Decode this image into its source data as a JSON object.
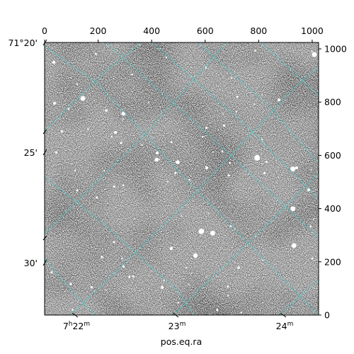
{
  "figure": {
    "xlabel": "pos.eq.ra",
    "pixel_x_ticks": [
      "0",
      "200",
      "400",
      "600",
      "800",
      "1000"
    ],
    "pixel_y_ticks": [
      "0",
      "200",
      "400",
      "600",
      "800",
      "1000"
    ],
    "dec_ticks": [
      "71°20'",
      "25'",
      "30'"
    ],
    "ra_ticks": [
      {
        "h": "7",
        "hs": "h",
        "m": "22",
        "ms": "m"
      },
      {
        "h": "",
        "hs": "",
        "m": "23",
        "ms": "m"
      },
      {
        "h": "",
        "hs": "",
        "m": "24",
        "ms": "m"
      }
    ],
    "grid_color": "#40d0d0",
    "image_colormap": "grayscale"
  }
}
